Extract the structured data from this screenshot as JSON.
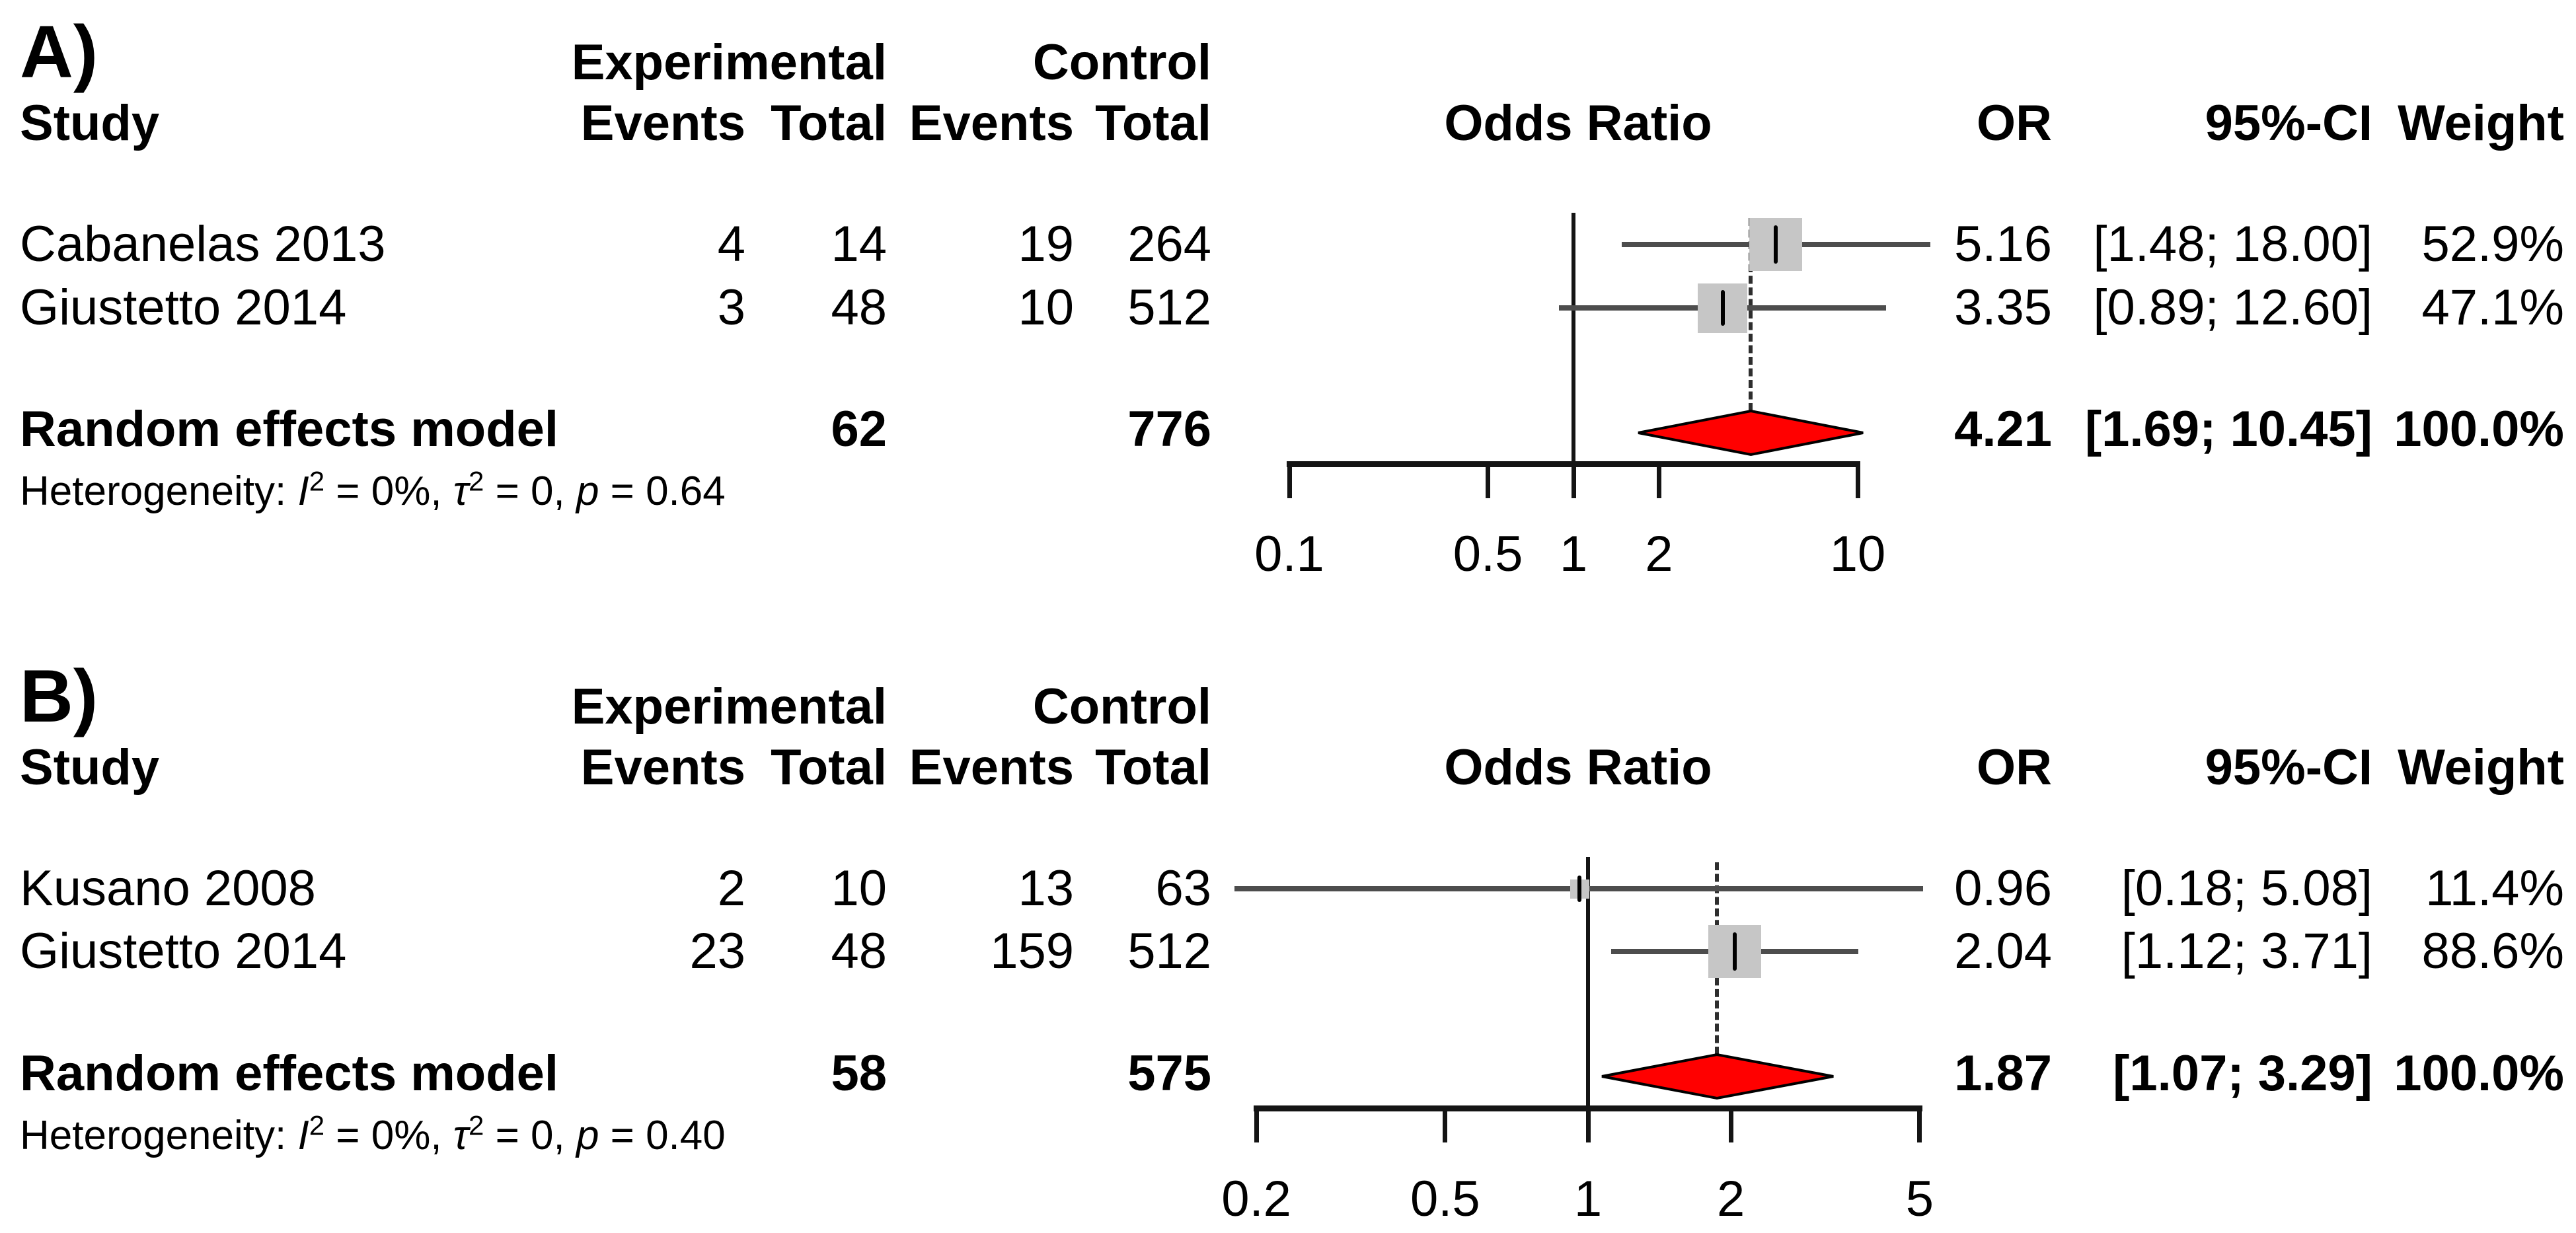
{
  "colors": {
    "diamond_fill": "#ff0000",
    "diamond_stroke": "#000000",
    "square_fill": "#c6c6c6",
    "ci_line": "#4d4d4d",
    "axis": "#141414",
    "dash": "#2e2e2e",
    "text": "#000000"
  },
  "panels": [
    {
      "label": "A)",
      "group_experimental": "Experimental",
      "group_control": "Control",
      "col_study": "Study",
      "col_events_exp": "Events",
      "col_total_exp": "Total",
      "col_events_ctrl": "Events",
      "col_total_ctrl": "Total",
      "col_odds_ratio": "Odds Ratio",
      "col_or": "OR",
      "col_ci": "95%-CI",
      "col_weight": "Weight",
      "studies": [
        {
          "name": "Cabanelas 2013",
          "events_exp": "4",
          "total_exp": "14",
          "events_ctrl": "19",
          "total_ctrl": "264",
          "or": "5.16",
          "ci": "[1.48; 18.00]",
          "weight": "52.9%"
        },
        {
          "name": "Giustetto 2014",
          "events_exp": "3",
          "total_exp": "48",
          "events_ctrl": "10",
          "total_ctrl": "512",
          "or": "3.35",
          "ci": "[0.89; 12.60]",
          "weight": "47.1%"
        }
      ],
      "pooled": {
        "name": "Random effects model",
        "total_exp": "62",
        "total_ctrl": "776",
        "or": "4.21",
        "ci": "[1.69; 10.45]",
        "weight": "100.0%"
      },
      "heterogeneity": {
        "prefix": "Heterogeneity: ",
        "i_sym": "I",
        "sup": "2",
        "i_val": " = 0%, ",
        "tau_sym": "τ",
        "tau_val": " = 0, ",
        "p_sym": "p",
        "p_val": " = 0.64"
      }
    },
    {
      "label": "B)",
      "group_experimental": "Experimental",
      "group_control": "Control",
      "col_study": "Study",
      "col_events_exp": "Events",
      "col_total_exp": "Total",
      "col_events_ctrl": "Events",
      "col_total_ctrl": "Total",
      "col_odds_ratio": "Odds Ratio",
      "col_or": "OR",
      "col_ci": "95%-CI",
      "col_weight": "Weight",
      "studies": [
        {
          "name": "Kusano 2008",
          "events_exp": "2",
          "total_exp": "10",
          "events_ctrl": "13",
          "total_ctrl": "63",
          "or": "0.96",
          "ci": "[0.18; 5.08]",
          "weight": "11.4%"
        },
        {
          "name": "Giustetto 2014",
          "events_exp": "23",
          "total_exp": "48",
          "events_ctrl": "159",
          "total_ctrl": "512",
          "or": "2.04",
          "ci": "[1.12; 3.71]",
          "weight": "88.6%"
        }
      ],
      "pooled": {
        "name": "Random effects model",
        "total_exp": "58",
        "total_ctrl": "575",
        "or": "1.87",
        "ci": "[1.07; 3.29]",
        "weight": "100.0%"
      },
      "heterogeneity": {
        "prefix": "Heterogeneity: ",
        "i_sym": "I",
        "sup": "2",
        "i_val": " = 0%, ",
        "tau_sym": "τ",
        "tau_val": " = 0, ",
        "p_sym": "p",
        "p_val": " = 0.40"
      }
    }
  ],
  "chart_data": [
    {
      "type": "forest",
      "panel": "A",
      "x_scale": "log",
      "axis_ticks": [
        0.1,
        0.5,
        1,
        2,
        10
      ],
      "axis_tick_labels": [
        "0.1",
        "0.5",
        "1",
        "2",
        "10"
      ],
      "axis_range": [
        0.1,
        10
      ],
      "null_line": 1,
      "studies": [
        {
          "name": "Cabanelas 2013",
          "events_exp": 4,
          "total_exp": 14,
          "events_ctrl": 19,
          "total_ctrl": 264,
          "or": 5.16,
          "ci_low": 1.48,
          "ci_high": 18.0,
          "weight_pct": 52.9
        },
        {
          "name": "Giustetto 2014",
          "events_exp": 3,
          "total_exp": 48,
          "events_ctrl": 10,
          "total_ctrl": 512,
          "or": 3.35,
          "ci_low": 0.89,
          "ci_high": 12.6,
          "weight_pct": 47.1
        }
      ],
      "pooled": {
        "name": "Random effects model",
        "total_exp": 62,
        "total_ctrl": 776,
        "or": 4.21,
        "ci_low": 1.69,
        "ci_high": 10.45,
        "weight_pct": 100.0
      },
      "heterogeneity": {
        "I2": "0%",
        "tau2": "0",
        "p": "0.64"
      }
    },
    {
      "type": "forest",
      "panel": "B",
      "x_scale": "log",
      "axis_ticks": [
        0.2,
        0.5,
        1,
        2,
        5
      ],
      "axis_tick_labels": [
        "0.2",
        "0.5",
        "1",
        "2",
        "5"
      ],
      "axis_range": [
        0.2,
        5
      ],
      "null_line": 1,
      "studies": [
        {
          "name": "Kusano 2008",
          "events_exp": 2,
          "total_exp": 10,
          "events_ctrl": 13,
          "total_ctrl": 63,
          "or": 0.96,
          "ci_low": 0.18,
          "ci_high": 5.08,
          "weight_pct": 11.4
        },
        {
          "name": "Giustetto 2014",
          "events_exp": 23,
          "total_exp": 48,
          "events_ctrl": 159,
          "total_ctrl": 512,
          "or": 2.04,
          "ci_low": 1.12,
          "ci_high": 3.71,
          "weight_pct": 88.6
        }
      ],
      "pooled": {
        "name": "Random effects model",
        "total_exp": 58,
        "total_ctrl": 575,
        "or": 1.87,
        "ci_low": 1.07,
        "ci_high": 3.29,
        "weight_pct": 100.0
      },
      "heterogeneity": {
        "I2": "0%",
        "tau2": "0",
        "p": "0.40"
      }
    }
  ]
}
